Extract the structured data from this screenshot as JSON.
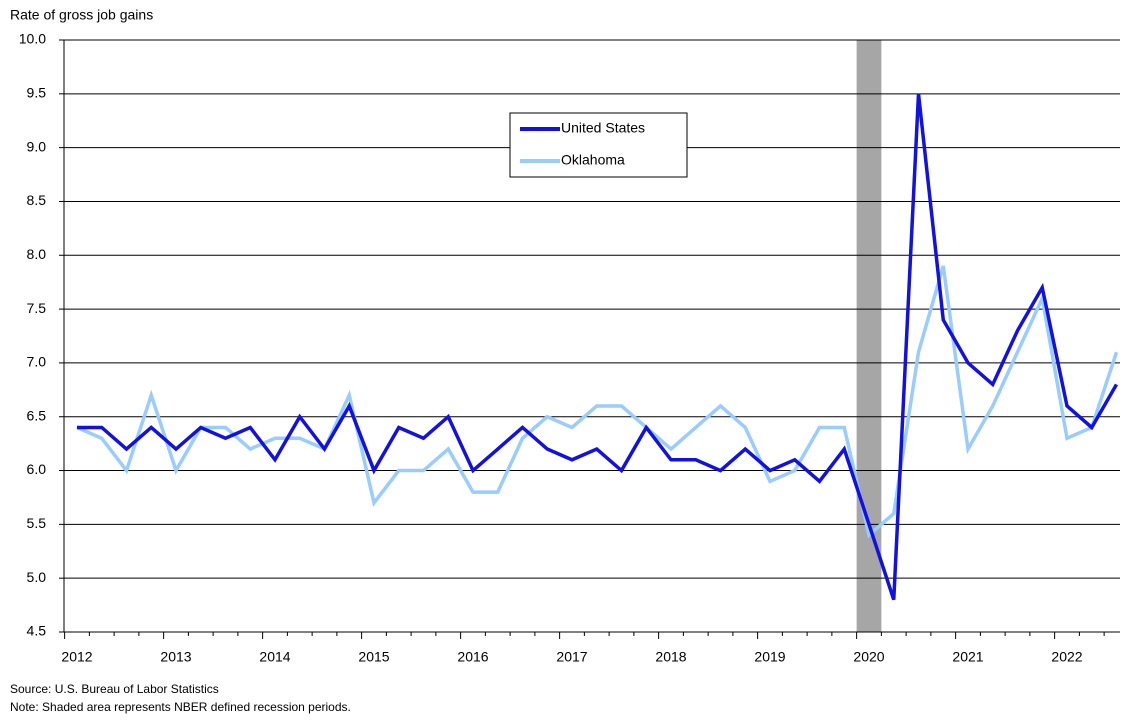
{
  "chart_data": {
    "type": "line",
    "y_label": "Rate of gross job gains",
    "categories": [
      "2012",
      null,
      null,
      null,
      "2013",
      null,
      null,
      null,
      "2014",
      null,
      null,
      null,
      "2015",
      null,
      null,
      null,
      "2016",
      null,
      null,
      null,
      "2017",
      null,
      null,
      null,
      "2018",
      null,
      null,
      null,
      "2019",
      null,
      null,
      null,
      "2020",
      null,
      null,
      null,
      "2021",
      null,
      null,
      null,
      "2022",
      null,
      null
    ],
    "series": [
      {
        "name": "United States",
        "color": "#1111e6",
        "values": [
          6.4,
          6.4,
          6.2,
          6.4,
          6.2,
          6.4,
          6.3,
          6.4,
          6.1,
          6.5,
          6.2,
          6.6,
          6.0,
          6.4,
          6.3,
          6.5,
          6.0,
          6.2,
          6.4,
          6.2,
          6.1,
          6.2,
          6.0,
          6.4,
          6.1,
          6.1,
          6.0,
          6.2,
          6.0,
          6.1,
          5.9,
          6.2,
          5.5,
          4.8,
          9.5,
          7.4,
          7.0,
          6.8,
          7.3,
          7.7,
          6.6,
          6.4,
          6.8
        ]
      },
      {
        "name": "Oklahoma",
        "color": "#99ccff",
        "values": [
          6.4,
          6.3,
          6.0,
          6.7,
          6.0,
          6.4,
          6.4,
          6.2,
          6.3,
          6.3,
          6.2,
          6.7,
          5.7,
          6.0,
          6.0,
          6.2,
          5.8,
          5.8,
          6.3,
          6.5,
          6.4,
          6.6,
          6.6,
          6.4,
          6.2,
          6.4,
          6.6,
          6.4,
          5.9,
          6.0,
          6.4,
          6.4,
          5.4,
          5.6,
          7.1,
          7.9,
          6.2,
          6.6,
          7.1,
          7.6,
          6.3,
          6.4,
          7.1
        ]
      }
    ],
    "ylim": [
      4.5,
      10
    ],
    "yticks": [
      4.5,
      {
        "value": 5,
        "label": "5.0"
      },
      5.5,
      {
        "value": 6,
        "label": "6.0"
      },
      6.5,
      {
        "value": 7,
        "label": "7.0"
      },
      7.5,
      {
        "value": 8,
        "label": "8.0"
      },
      8.5,
      {
        "value": 9,
        "label": "9.0"
      },
      9.5,
      {
        "value": 10,
        "label": "10.0"
      }
    ],
    "grid": true,
    "recession_shade": "2020",
    "source": "Source: U.S. Bureau of Labor Statistics",
    "note": "Note: Shaded area represents NBER defined recession periods."
  }
}
